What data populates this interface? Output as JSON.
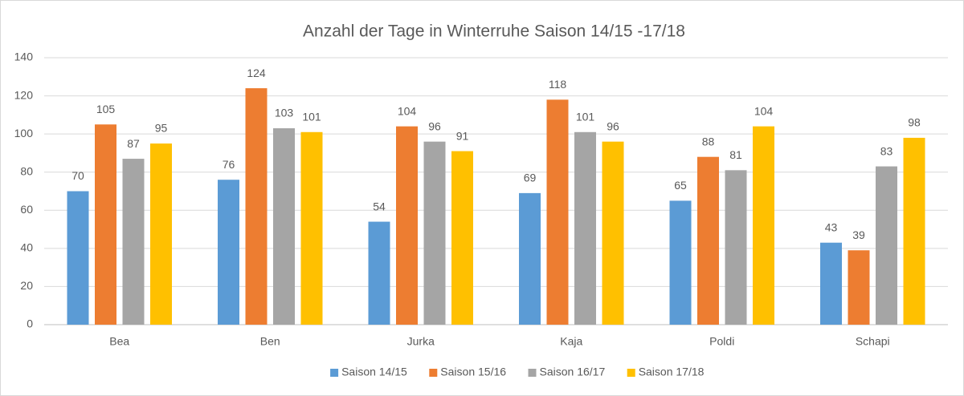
{
  "chart_data": {
    "type": "bar",
    "title": "Anzahl der Tage in Winterruhe Saison 14/15 -17/18",
    "categories": [
      "Bea",
      "Ben",
      "Jurka",
      "Kaja",
      "Poldi",
      "Schapi"
    ],
    "series": [
      {
        "name": "Saison 14/15",
        "color": "#5b9bd5",
        "values": [
          70,
          76,
          54,
          69,
          65,
          43
        ]
      },
      {
        "name": "Saison 15/16",
        "color": "#ed7d31",
        "values": [
          105,
          124,
          104,
          118,
          88,
          39
        ]
      },
      {
        "name": "Saison 16/17",
        "color": "#a5a5a5",
        "values": [
          87,
          103,
          96,
          101,
          81,
          83
        ]
      },
      {
        "name": "Saison 17/18",
        "color": "#ffc000",
        "values": [
          95,
          101,
          91,
          96,
          104,
          98
        ]
      }
    ],
    "ylim": [
      0,
      140
    ],
    "yticks": [
      0,
      20,
      40,
      60,
      80,
      100,
      120,
      140
    ],
    "grid": true,
    "legend": "bottom"
  }
}
